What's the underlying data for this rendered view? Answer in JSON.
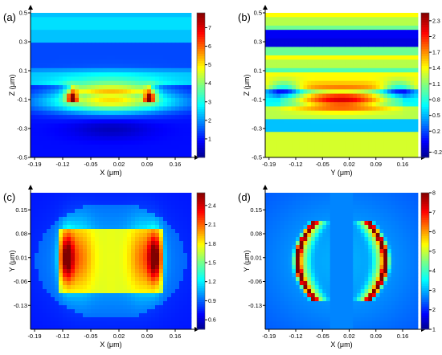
{
  "chart_data": [
    {
      "type": "heatmap",
      "panel_label": "(a)",
      "xlabel": "X (μm)",
      "ylabel": "Z (μm)",
      "xlim": [
        -0.2,
        0.2
      ],
      "ylim": [
        -0.5,
        0.5
      ],
      "xticks": [
        -0.19,
        -0.12,
        -0.05,
        0.02,
        0.09,
        0.16
      ],
      "yticks": [
        0.5,
        0.3,
        0.1,
        -0.1,
        -0.3,
        -0.5
      ],
      "colorbar": {
        "min": 0,
        "max": 7.8,
        "ticks": [
          1,
          2,
          3,
          4,
          5,
          6,
          7
        ]
      }
    },
    {
      "type": "heatmap",
      "panel_label": "(b)",
      "xlabel": "Y (μm)",
      "ylabel": "Z (μm)",
      "xlim": [
        -0.2,
        0.2
      ],
      "ylim": [
        -0.5,
        0.5
      ],
      "xticks": [
        -0.19,
        -0.12,
        -0.05,
        0.02,
        0.09,
        0.16
      ],
      "yticks": [
        0.5,
        0.3,
        0.1,
        -0.1,
        -0.3,
        -0.5
      ],
      "colorbar": {
        "min": -0.3,
        "max": 2.45,
        "ticks": [
          -0.2,
          0.2,
          0.5,
          0.8,
          1.1,
          1.4,
          1.7,
          2.0,
          2.3
        ]
      }
    },
    {
      "type": "heatmap",
      "panel_label": "(c)",
      "xlabel": "X (μm)",
      "ylabel": "Y (μm)",
      "xlim": [
        -0.2,
        0.2
      ],
      "ylim": [
        -0.2,
        0.2
      ],
      "xticks": [
        -0.19,
        -0.12,
        -0.05,
        0.02,
        0.09,
        0.16
      ],
      "yticks": [
        0.15,
        0.08,
        0.01,
        -0.06,
        -0.13
      ],
      "colorbar": {
        "min": 0.45,
        "max": 2.6,
        "ticks": [
          0.6,
          0.9,
          1.2,
          1.5,
          1.8,
          2.1,
          2.4
        ]
      }
    },
    {
      "type": "heatmap",
      "panel_label": "(d)",
      "xlabel": "X (μm)",
      "ylabel": "Y (μm)",
      "xlim": [
        -0.2,
        0.2
      ],
      "ylim": [
        -0.2,
        0.2
      ],
      "xticks": [
        -0.19,
        -0.12,
        -0.05,
        0.02,
        0.09,
        0.16
      ],
      "yticks": [
        0.15,
        0.08,
        0.01,
        -0.06,
        -0.13
      ],
      "colorbar": {
        "min": 1,
        "max": 8,
        "ticks": [
          1,
          2,
          3,
          4,
          5,
          6,
          7,
          8
        ]
      }
    }
  ]
}
